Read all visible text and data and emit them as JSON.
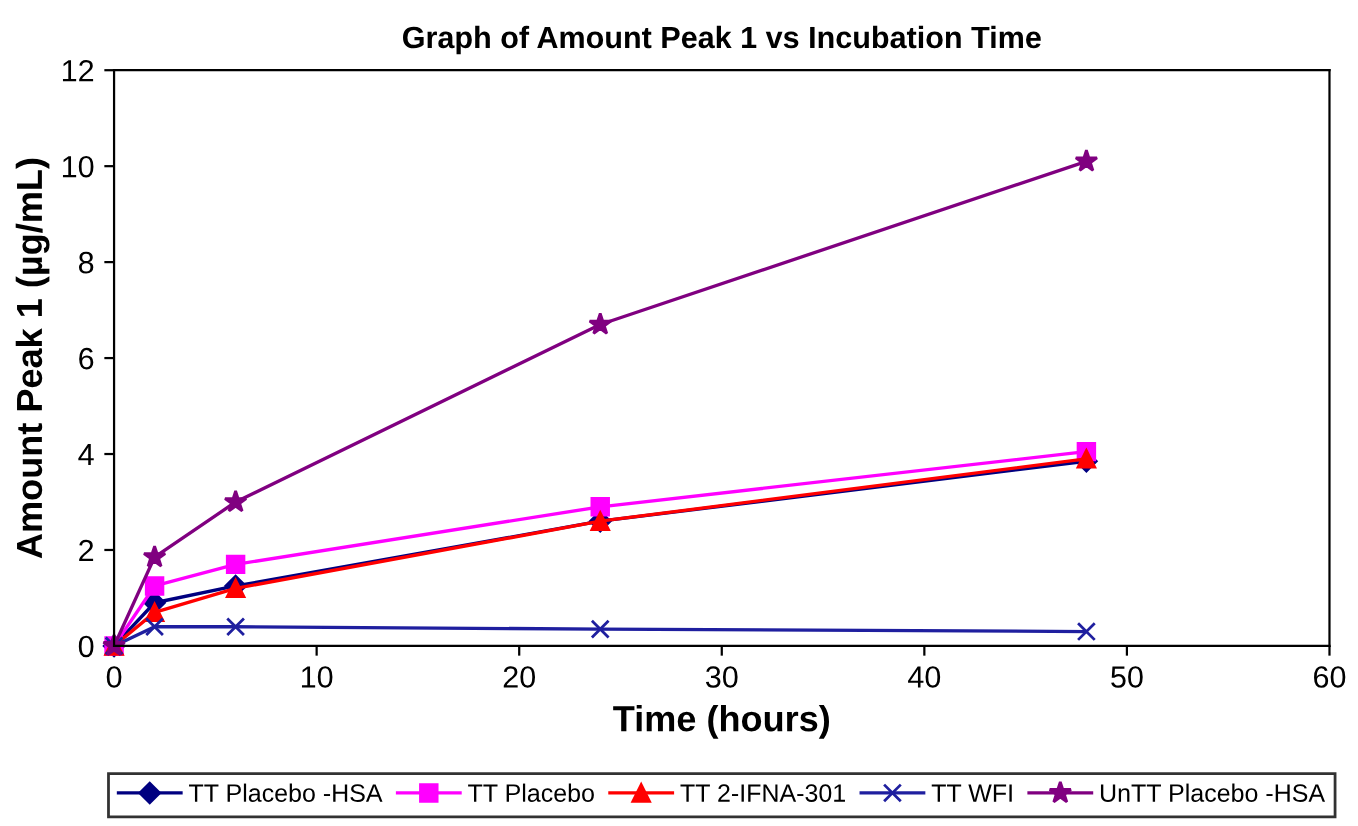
{
  "chart_data": {
    "type": "line",
    "title": "Graph of Amount Peak 1 vs Incubation Time",
    "xlabel": "Time (hours)",
    "ylabel": "Amount Peak 1 (µg/mL)",
    "x": [
      0,
      2,
      6,
      24,
      48
    ],
    "series": [
      {
        "name": "TT Placebo -HSA",
        "color": "#000080",
        "marker": "diamond",
        "values": [
          0,
          0.9,
          1.25,
          2.6,
          3.85
        ]
      },
      {
        "name": "TT Placebo",
        "color": "#ff00ff",
        "marker": "square",
        "values": [
          0,
          1.25,
          1.7,
          2.9,
          4.05
        ]
      },
      {
        "name": "TT 2-IFNA-301",
        "color": "#ff0000",
        "marker": "triangle",
        "values": [
          0,
          0.7,
          1.2,
          2.6,
          3.9
        ]
      },
      {
        "name": "TT WFI",
        "color": "#1f1f9f",
        "marker": "cross",
        "values": [
          0,
          0.4,
          0.4,
          0.35,
          0.3
        ]
      },
      {
        "name": "UnTT Placebo -HSA",
        "color": "#800080",
        "marker": "star",
        "values": [
          0,
          1.85,
          3.0,
          6.7,
          10.1
        ]
      }
    ],
    "xlim": [
      0,
      60
    ],
    "xticks": [
      0,
      10,
      20,
      30,
      40,
      50,
      60
    ],
    "ylim": [
      0,
      12
    ],
    "yticks": [
      0,
      2,
      4,
      6,
      8,
      10,
      12
    ],
    "grid": false,
    "legend": "bottom",
    "line_style": "solid"
  }
}
